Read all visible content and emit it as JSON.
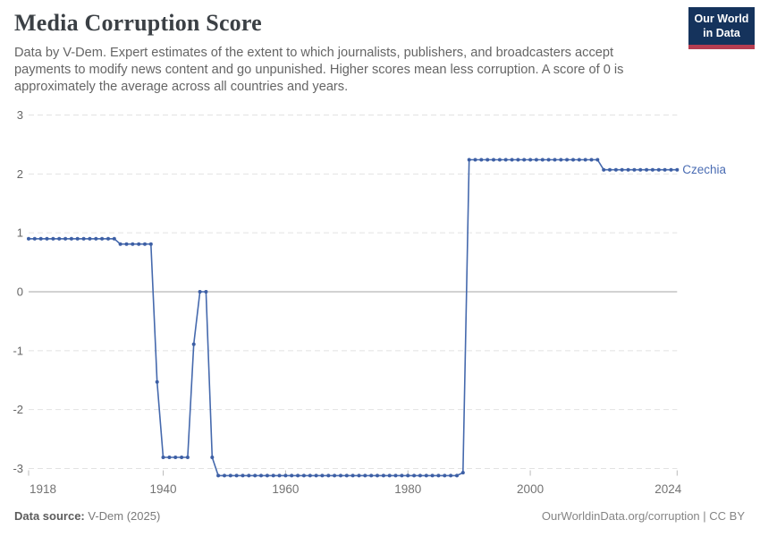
{
  "header": {
    "title": "Media Corruption Score",
    "subtitle": "Data by V-Dem. Expert estimates of the extent to which journalists, publishers, and broadcasters accept payments to modify news content and go unpunished. Higher scores mean less corruption. A score of 0 is approximately the average across all countries and years.",
    "logo": {
      "line1": "Our World",
      "line2": "in Data"
    }
  },
  "footer": {
    "source_label": "Data source:",
    "source_value": " V-Dem (2025)",
    "credit": "OurWorldinData.org/corruption | CC BY"
  },
  "colors": {
    "line": "#4569ad",
    "point": "#3d5fa5",
    "entity_label": "#4a6cb3",
    "grid": "#e2e2e2",
    "zero_line": "#a5a5a5",
    "tick_mark": "#bbbbbb",
    "axis_text_y": "#666666",
    "axis_text_x": "#737373",
    "logo_bg": "#15335c",
    "logo_accent": "#b63d51"
  },
  "chart_data": {
    "type": "line",
    "title": "Media Corruption Score",
    "entity": "Czechia",
    "x_ticks": [
      1918,
      1940,
      1960,
      1980,
      2000,
      2024
    ],
    "y_ticks": [
      3,
      2,
      1,
      0,
      -1,
      -2,
      -3
    ],
    "xlim": [
      1918,
      2024
    ],
    "ylim": [
      -3.2,
      3
    ],
    "grid": true,
    "legend_position": "end-of-line",
    "series": [
      {
        "name": "Czechia",
        "segments": [
          {
            "from": 1918,
            "to": 1932,
            "value": 0.9
          },
          {
            "from": 1933,
            "to": 1938,
            "value": 0.81
          },
          {
            "from": 1939,
            "to": 1939,
            "value": -1.53
          },
          {
            "from": 1940,
            "to": 1944,
            "value": -2.81
          },
          {
            "from": 1945,
            "to": 1945,
            "value": -0.89
          },
          {
            "from": 1946,
            "to": 1947,
            "value": 0.0
          },
          {
            "from": 1948,
            "to": 1948,
            "value": -2.81
          },
          {
            "from": 1949,
            "to": 1988,
            "value": -3.12
          },
          {
            "from": 1989,
            "to": 1989,
            "value": -3.07
          },
          {
            "from": 1990,
            "to": 2011,
            "value": 2.24
          },
          {
            "from": 2012,
            "to": 2024,
            "value": 2.07
          }
        ]
      }
    ]
  }
}
